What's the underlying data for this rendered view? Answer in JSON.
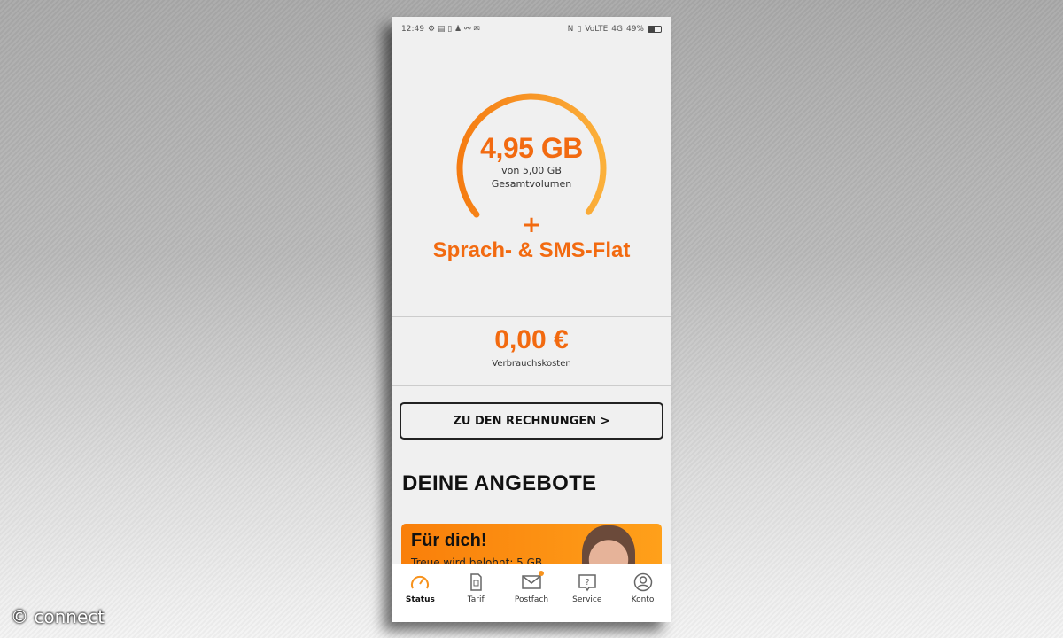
{
  "status_bar": {
    "time": "12:49",
    "network": "VoLTE",
    "signal": "4G",
    "battery": "49%"
  },
  "usage": {
    "remaining": "4,95 GB",
    "of_total": "von 5,00 GB",
    "caption": "Gesamtvolumen",
    "fraction_remaining": 0.99,
    "gauge_color": "#f7931e"
  },
  "plus": "+",
  "flat": "Sprach- & SMS-Flat",
  "costs": {
    "value": "0,00 €",
    "label": "Verbrauchskosten"
  },
  "invoices_button": "ZU DEN RECHNUNGEN >",
  "offers": {
    "title": "DEINE ANGEBOTE",
    "card_title": "Für dich!",
    "card_text": "Treue wird belohnt: 5 GB"
  },
  "nav": [
    {
      "label": "Status",
      "icon": "speedometer-icon",
      "active": true
    },
    {
      "label": "Tarif",
      "icon": "sim-card-icon"
    },
    {
      "label": "Postfach",
      "icon": "mail-icon",
      "badge": true
    },
    {
      "label": "Service",
      "icon": "help-icon"
    },
    {
      "label": "Konto",
      "icon": "user-icon"
    }
  ],
  "watermark": "© connect",
  "accent": "#f26a10"
}
